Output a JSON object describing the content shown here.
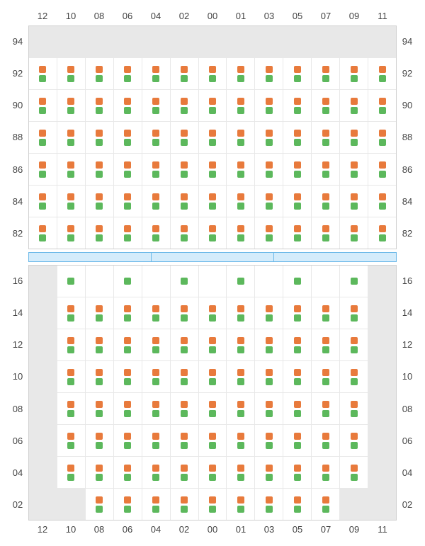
{
  "colors": {
    "marker_top": "#e87a3c",
    "marker_bottom": "#5cb85c",
    "empty_cell": "#e8e8e8",
    "grid_border": "#d0d0d0",
    "cell_border": "#e8e8e8",
    "divider_fill": "#d4ecfb",
    "divider_border": "#6bb8e8",
    "label_text": "#444444",
    "background": "#ffffff"
  },
  "typography": {
    "label_fontsize": 13,
    "font_family": "Arial, Helvetica, sans-serif"
  },
  "column_labels": [
    "12",
    "10",
    "08",
    "06",
    "04",
    "02",
    "00",
    "01",
    "03",
    "05",
    "07",
    "09",
    "11"
  ],
  "top_section": {
    "row_labels": [
      "94",
      "92",
      "90",
      "88",
      "86",
      "84",
      "82"
    ],
    "rows": [
      {
        "label": "94",
        "cells": [
          "E",
          "E",
          "E",
          "E",
          "E",
          "E",
          "E",
          "E",
          "E",
          "E",
          "E",
          "E",
          "E"
        ]
      },
      {
        "label": "92",
        "cells": [
          "M",
          "M",
          "M",
          "M",
          "M",
          "M",
          "M",
          "M",
          "M",
          "M",
          "M",
          "M",
          "M"
        ]
      },
      {
        "label": "90",
        "cells": [
          "M",
          "M",
          "M",
          "M",
          "M",
          "M",
          "M",
          "M",
          "M",
          "M",
          "M",
          "M",
          "M"
        ]
      },
      {
        "label": "88",
        "cells": [
          "M",
          "M",
          "M",
          "M",
          "M",
          "M",
          "M",
          "M",
          "M",
          "M",
          "M",
          "M",
          "M"
        ]
      },
      {
        "label": "86",
        "cells": [
          "M",
          "M",
          "M",
          "M",
          "M",
          "M",
          "M",
          "M",
          "M",
          "M",
          "M",
          "M",
          "M"
        ]
      },
      {
        "label": "84",
        "cells": [
          "M",
          "M",
          "M",
          "M",
          "M",
          "M",
          "M",
          "M",
          "M",
          "M",
          "M",
          "M",
          "M"
        ]
      },
      {
        "label": "82",
        "cells": [
          "M",
          "M",
          "M",
          "M",
          "M",
          "M",
          "M",
          "M",
          "M",
          "M",
          "M",
          "M",
          "M"
        ]
      }
    ]
  },
  "divider": {
    "segments": 3
  },
  "bottom_section": {
    "row_labels": [
      "16",
      "14",
      "12",
      "10",
      "08",
      "06",
      "04",
      "02"
    ],
    "rows": [
      {
        "label": "16",
        "cells": [
          "E",
          "G",
          "B",
          "G",
          "B",
          "G",
          "B",
          "G",
          "B",
          "G",
          "B",
          "G",
          "E"
        ]
      },
      {
        "label": "14",
        "cells": [
          "E",
          "M",
          "M",
          "M",
          "M",
          "M",
          "M",
          "M",
          "M",
          "M",
          "M",
          "M",
          "E"
        ]
      },
      {
        "label": "12",
        "cells": [
          "E",
          "M",
          "M",
          "M",
          "M",
          "M",
          "M",
          "M",
          "M",
          "M",
          "M",
          "M",
          "E"
        ]
      },
      {
        "label": "10",
        "cells": [
          "E",
          "M",
          "M",
          "M",
          "M",
          "M",
          "M",
          "M",
          "M",
          "M",
          "M",
          "M",
          "E"
        ]
      },
      {
        "label": "08",
        "cells": [
          "E",
          "M",
          "M",
          "M",
          "M",
          "M",
          "M",
          "M",
          "M",
          "M",
          "M",
          "M",
          "E"
        ]
      },
      {
        "label": "06",
        "cells": [
          "E",
          "M",
          "M",
          "M",
          "M",
          "M",
          "M",
          "M",
          "M",
          "M",
          "M",
          "M",
          "E"
        ]
      },
      {
        "label": "04",
        "cells": [
          "E",
          "M",
          "M",
          "M",
          "M",
          "M",
          "M",
          "M",
          "M",
          "M",
          "M",
          "M",
          "E"
        ]
      },
      {
        "label": "02",
        "cells": [
          "E",
          "E",
          "M",
          "M",
          "M",
          "M",
          "M",
          "M",
          "M",
          "M",
          "M",
          "E",
          "E"
        ]
      }
    ]
  },
  "legend": {
    "E": "empty",
    "M": "both-markers",
    "G": "green-only",
    "B": "blank"
  }
}
